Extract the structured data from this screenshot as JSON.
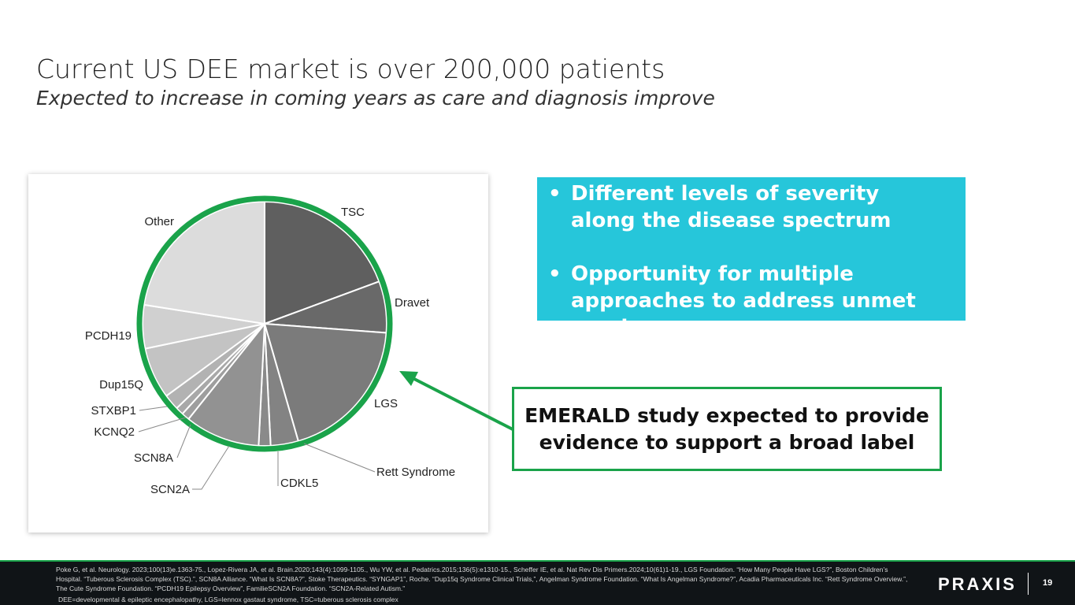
{
  "slide": {
    "title": "Current US DEE market is over 200,000 patients",
    "subtitle": "Expected to increase in coming years as care and diagnosis improve"
  },
  "chart_data": {
    "type": "pie",
    "title": "",
    "start_angle_deg": 0,
    "direction": "clockwise",
    "unit": "share of slices (approx. %)",
    "slices": [
      {
        "label": "TSC",
        "value": 18.5,
        "color": "#5f5f5f"
      },
      {
        "label": "Dravet",
        "value": 6.5,
        "color": "#696969"
      },
      {
        "label": "LGS",
        "value": 18.5,
        "color": "#7b7b7b"
      },
      {
        "label": "Rett Syndrome",
        "value": 3.5,
        "color": "#838383"
      },
      {
        "label": "CDKL5",
        "value": 1.5,
        "color": "#8a8a8a"
      },
      {
        "label": "SCN2A",
        "value": 9.5,
        "color": "#929292"
      },
      {
        "label": "SCN8A",
        "value": 1.0,
        "color": "#9e9e9e"
      },
      {
        "label": "KCNQ2",
        "value": 1.0,
        "color": "#a8a8a8"
      },
      {
        "label": "STXBP1",
        "value": 2.0,
        "color": "#b2b2b2"
      },
      {
        "label": "Dup15Q",
        "value": 6.5,
        "color": "#c3c3c3"
      },
      {
        "label": "PCDH19",
        "value": 5.5,
        "color": "#d0d0d0"
      },
      {
        "label": "Other",
        "value": 21.5,
        "color": "#dcdcdc"
      }
    ],
    "ring_color": "#1aa34a"
  },
  "callout": {
    "bullets": [
      "Different levels of severity along the disease spectrum",
      "Opportunity for multiple approaches to address unmet need"
    ],
    "background": "#26c6da"
  },
  "emerald": {
    "text": "EMERALD study expected to provide evidence to support a broad label",
    "border_color": "#1aa34a"
  },
  "footer": {
    "references": "Poke G, et al. Neurology. 2023;100(13)e.1363-75., Lopez-Rivera JA, et al. Brain.2020;143(4):1099-1105., Wu YW, et al. Pedatrics.2015;136(5):e1310-15., Scheffer IE, et al. Nat Rev Dis Primers.2024;10(61)1-19., LGS Foundation. “How Many People Have LGS?”, Boston Children’s Hospital. “Tuberous Sclerosis Complex (TSC).”, SCN8A Alliance. “What Is SCN8A?”, Stoke Therapeutics. “SYNGAP1”, Roche. “Dup15q Syndrome Clinical Trials,”, Angelman Syndrome Foundation. “What Is Angelman Syndrome?”, Acadia Pharmaceuticals Inc. “Rett Syndrome Overview.”, The Cute Syndrome Foundation. “PCDH19 Epilepsy Overview”, FamilieSCN2A Foundation. “SCN2A-Related Autism.”",
    "abbreviations": "DEE=developmental & epileptic encephalopathy, LGS=lennox gastaut syndrome, TSC=tuberous sclerosis complex",
    "logo": "PRAXIS",
    "page_number": "19"
  }
}
